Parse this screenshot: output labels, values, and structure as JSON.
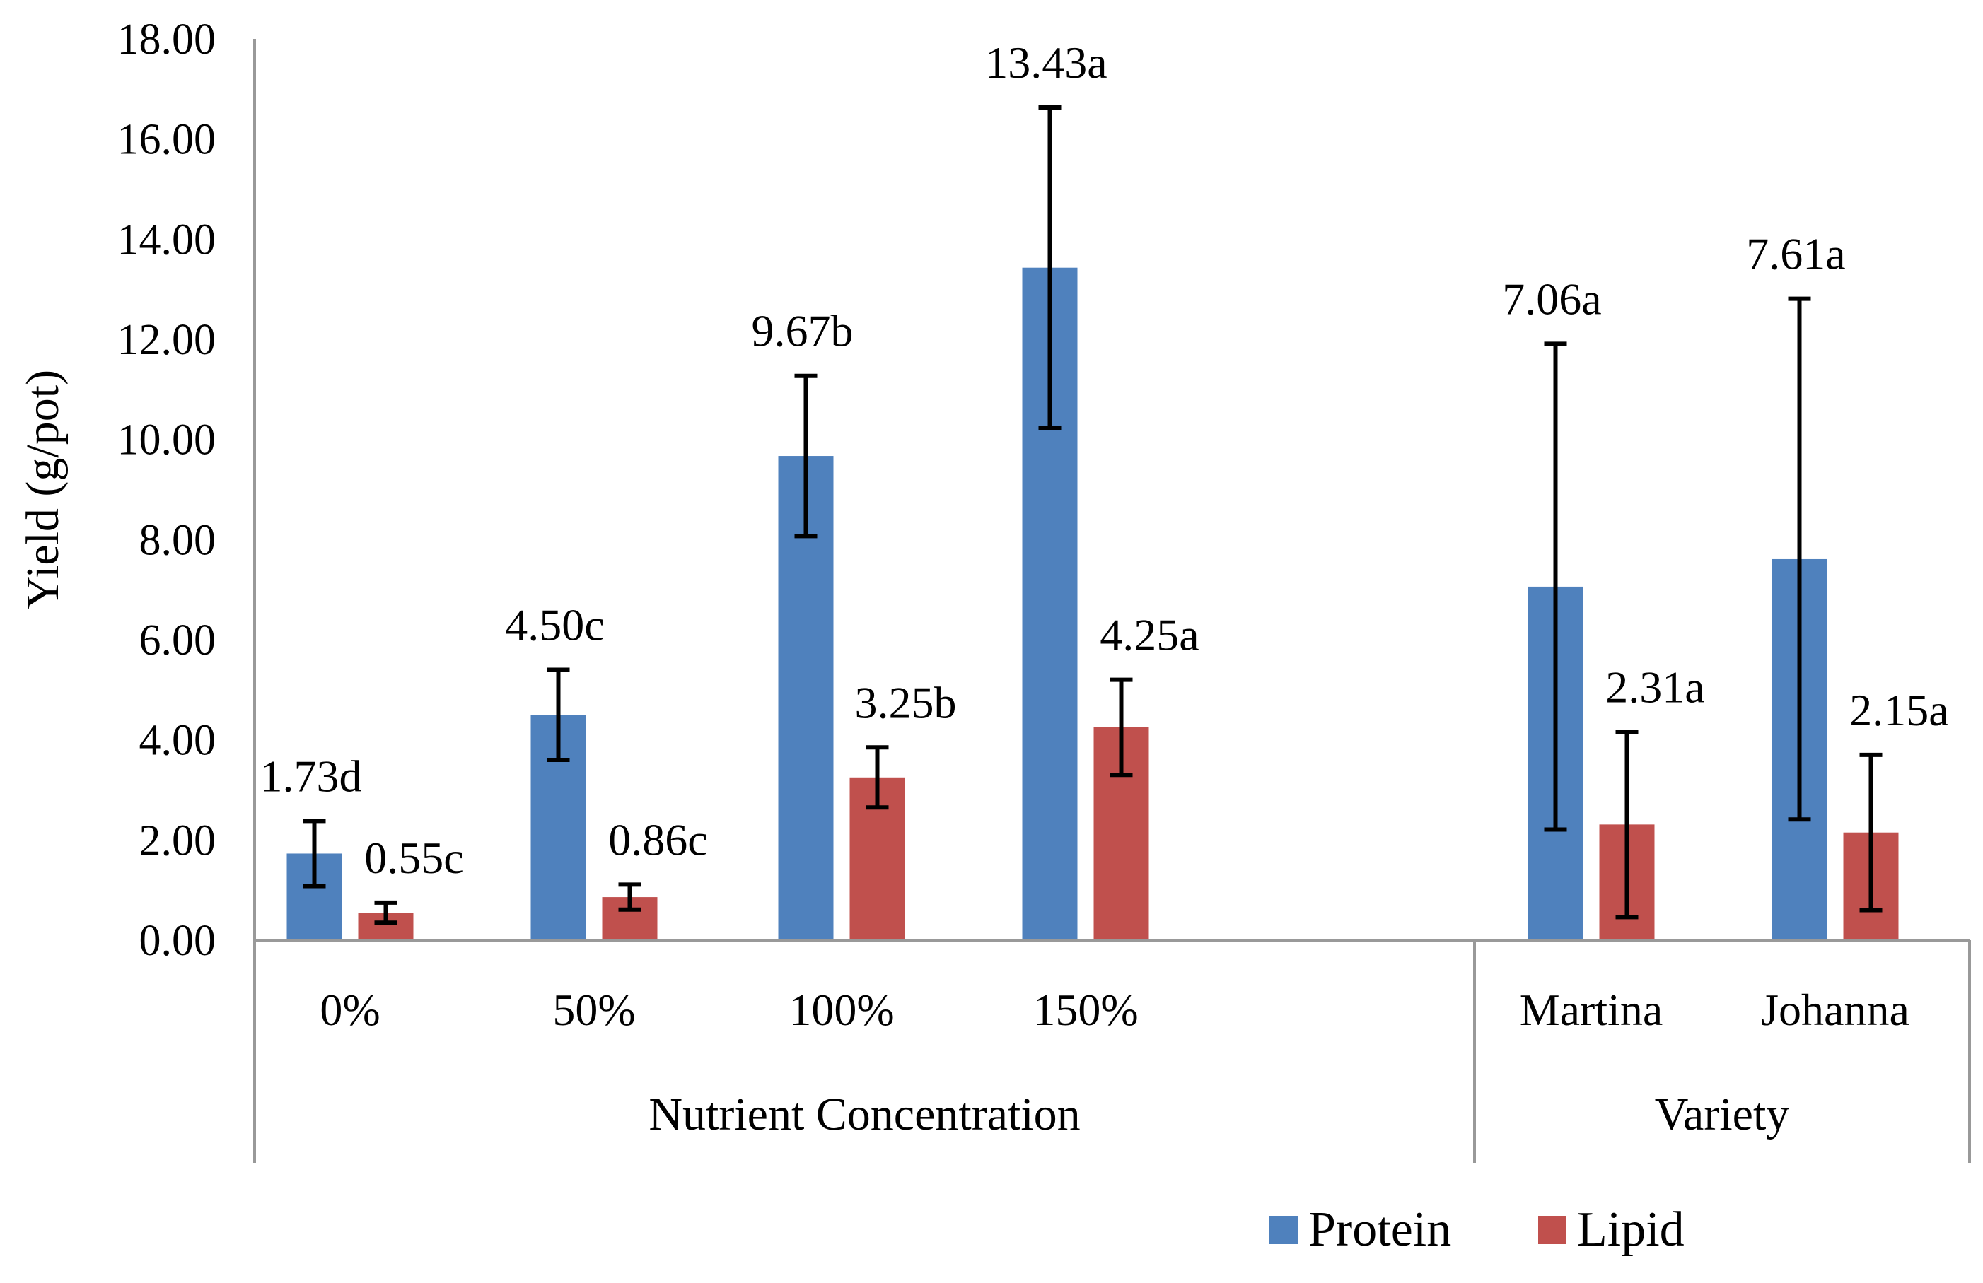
{
  "chart_data": {
    "type": "bar",
    "title": "",
    "ylabel": "Yield (g/pot)",
    "xlabel": "",
    "ylim": [
      0,
      18
    ],
    "yticks": [
      "0.00",
      "2.00",
      "4.00",
      "6.00",
      "8.00",
      "10.00",
      "12.00",
      "14.00",
      "16.00",
      "18.00"
    ],
    "grid": false,
    "legend_position": "bottom-right",
    "groups": [
      {
        "label": "Nutrient Concentration",
        "categories": [
          "0%",
          "50%",
          "100%",
          "150%"
        ]
      },
      {
        "label": "Variety",
        "categories": [
          "Martina",
          "Johanna"
        ]
      }
    ],
    "categories": [
      "0%",
      "50%",
      "100%",
      "150%",
      "Martina",
      "Johanna"
    ],
    "series": [
      {
        "name": "Protein",
        "color": "#4F81BD",
        "values": [
          1.73,
          4.5,
          9.67,
          13.43,
          7.06,
          7.61
        ],
        "errors": [
          0.65,
          0.9,
          1.6,
          3.2,
          4.85,
          5.2
        ],
        "labels": [
          "1.73d",
          "4.50c",
          "9.67b",
          "13.43a",
          "7.06a",
          "7.61a"
        ]
      },
      {
        "name": "Lipid",
        "color": "#C0504D",
        "values": [
          0.55,
          0.86,
          3.25,
          4.25,
          2.31,
          2.15
        ],
        "errors": [
          0.2,
          0.25,
          0.6,
          0.95,
          1.85,
          1.55
        ],
        "labels": [
          "0.55c",
          "0.86c",
          "3.25b",
          "4.25a",
          "2.31a",
          "2.15a"
        ]
      }
    ]
  }
}
